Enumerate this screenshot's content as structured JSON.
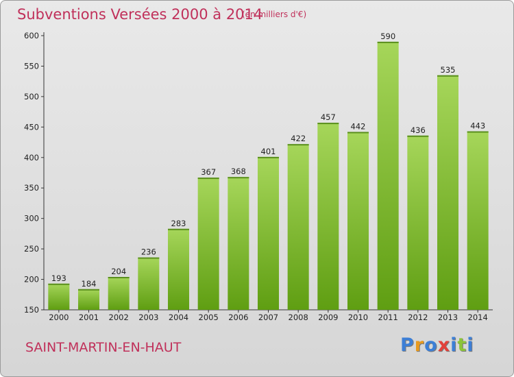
{
  "header": {
    "title": "Subventions Versées 2000 à 2014",
    "subtitle": "(en milliers d'€)"
  },
  "footer": {
    "town": "SAINT-MARTIN-EN-HAUT",
    "logo": "Proxiti"
  },
  "colors": {
    "title": "#c0305a",
    "bar_light": "#a6d65a",
    "bar_dark": "#5f9e12",
    "background": "#e0e0e0"
  },
  "chart_data": {
    "type": "bar",
    "title": "Subventions Versées 2000 à 2014",
    "subtitle": "(en milliers d'€)",
    "xlabel": "",
    "ylabel": "",
    "categories": [
      "2000",
      "2001",
      "2002",
      "2003",
      "2004",
      "2005",
      "2006",
      "2007",
      "2008",
      "2009",
      "2010",
      "2011",
      "2012",
      "2013",
      "2014"
    ],
    "values": [
      193,
      184,
      204,
      236,
      283,
      367,
      368,
      401,
      422,
      457,
      442,
      590,
      436,
      535,
      443
    ],
    "ylim": [
      150,
      600
    ],
    "yticks": [
      150,
      200,
      250,
      300,
      350,
      400,
      450,
      500,
      550,
      600
    ],
    "grid": false,
    "legend": "none"
  }
}
